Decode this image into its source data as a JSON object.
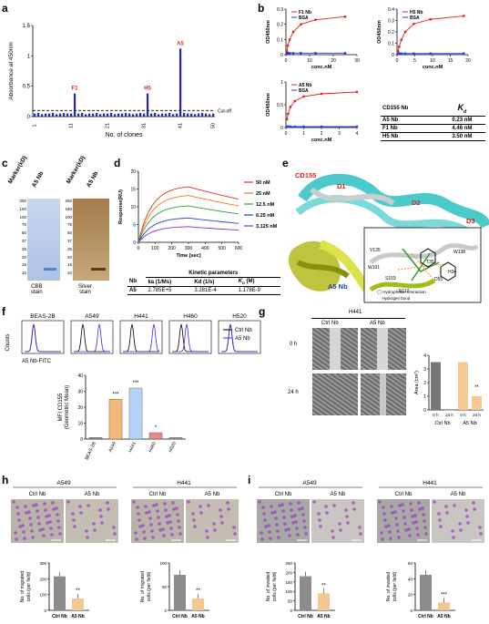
{
  "panel_letters": {
    "a": "a",
    "b": "b",
    "c": "c",
    "d": "d",
    "e": "e",
    "f": "f",
    "g": "g",
    "h": "h",
    "i": "i"
  },
  "panel_a": {
    "ylabel": "Absorbance at 450nm",
    "xlabel": "No. of clones",
    "cutoff_label": "Cut-off",
    "highlights": [
      {
        "clone": 12,
        "label": "F1"
      },
      {
        "clone": 32,
        "label": "H5"
      },
      {
        "clone": 41,
        "label": "A5"
      }
    ]
  },
  "panel_b": {
    "legend_f1": "F1 Nb",
    "legend_h5": "H5 Nb",
    "legend_a5": "A5 Nb",
    "legend_bsa": "BSA",
    "ylabel": "OD450nm",
    "xlabel": "conc.nM",
    "kd_header_left": "CD155 Nb",
    "kd_header_right": "K",
    "kd_sub": "d",
    "kd_rows": [
      {
        "nb": "A5 Nb",
        "kd": "0.23 nM"
      },
      {
        "nb": "F1 Nb",
        "kd": "4.46 nM"
      },
      {
        "nb": "H5 Nb",
        "kd": "3.50 nM"
      }
    ]
  },
  "panel_c": {
    "lane1": "Marker(kD)",
    "lane2": "A5 Nb",
    "cbb": "CBB\nstain",
    "silver": "Silver\nstain",
    "markers_left": [
      "250",
      "150",
      "100",
      "75",
      "50",
      "37",
      "25",
      "20",
      "15",
      "10"
    ],
    "markers_right": [
      "250",
      "150",
      "100",
      "75",
      "50",
      "37",
      "25",
      "20",
      "15",
      "10"
    ]
  },
  "panel_d": {
    "ylabel": "Response(RU)",
    "xlabel": "Time [sec]",
    "legend": [
      "50 nM",
      "25 nM",
      "12.5 nM",
      "6.25 nM",
      "3.125 nM"
    ],
    "table_title": "Kinetic parameters",
    "col_nb": "Nb",
    "col_ka": "ka (1/Ms)",
    "col_kd": "Kd (1/s)",
    "col_KD": "K",
    "col_KD_sub": "D",
    "col_KD_unit": " (M)",
    "row": {
      "nb": "A5",
      "ka": "2.785E+5",
      "kd": "3.281E-4",
      "KD": "1.178E-9"
    }
  },
  "panel_e": {
    "cd155": "CD155",
    "d1": "D1",
    "d2": "D2",
    "d3": "D3",
    "nb": "A5 Nb",
    "residues": [
      "V135",
      "W101",
      "S103",
      "T35",
      "D55",
      "H34",
      "W138",
      "E117"
    ],
    "legend_hydro": "Hydrophobic interaction",
    "legend_hbond": "Hydrogen bond"
  },
  "panel_f": {
    "cells": [
      "BEAS-2B",
      "A549",
      "H441",
      "H460",
      "H520"
    ],
    "ylabel_flow": "Counts",
    "xlabel_flow": "A5 Nb-FITC",
    "legend_ctrl": "Ctrl Nb",
    "legend_a5": "A5 Nb",
    "bar_ylabel": "MFI CD155\n(Geometric Mean)",
    "bar_values": [
      1,
      25,
      32,
      4,
      1
    ],
    "bar_sig": [
      "",
      "***",
      "***",
      "*",
      ""
    ]
  },
  "panel_g": {
    "title": "H441",
    "ctrl": "Ctrl Nb",
    "a5": "A5 Nb",
    "t0": "0 h",
    "t24": "24 h",
    "ylabel": "Area (cm²)",
    "groups": [
      {
        "name": "Ctrl Nb",
        "bars": [
          {
            "label": "0 h",
            "value": 3.5
          },
          {
            "label": "24 h",
            "value": 0
          }
        ]
      },
      {
        "name": "A5 Nb",
        "bars": [
          {
            "label": "0 h",
            "value": 3.5
          },
          {
            "label": "24 h",
            "value": 1.0
          }
        ]
      }
    ],
    "sig": "**"
  },
  "panel_h": {
    "left_title": "A549",
    "right_title": "H441",
    "ctrl": "Ctrl Nb",
    "a5": "A5 Nb",
    "ylabel": "No. of migrated\ncells (per field)",
    "left_values": [
      215,
      75
    ],
    "right_values": [
      75,
      25
    ],
    "sig": "**"
  },
  "panel_i": {
    "left_title": "A549",
    "right_title": "H441",
    "ctrl": "Ctrl Nb",
    "a5": "A5 Nb",
    "ylabel": "No. of invaded\ncells (per field)",
    "left_values": [
      180,
      90
    ],
    "right_values": [
      45,
      10
    ],
    "sig_left": "**",
    "sig_right": "***"
  },
  "chart_data": [
    {
      "type": "bar",
      "title": "",
      "xlabel": "No. of clones",
      "ylabel": "Absorbance at 450nm",
      "ylim": [
        0,
        1.5
      ],
      "x": [
        1,
        2,
        3,
        4,
        5,
        6,
        7,
        8,
        9,
        10,
        11,
        12,
        13,
        14,
        15,
        16,
        17,
        18,
        19,
        20,
        21,
        22,
        23,
        24,
        25,
        26,
        27,
        28,
        29,
        30,
        31,
        32,
        33,
        34,
        35,
        36,
        37,
        38,
        39,
        40,
        41,
        42,
        43,
        44,
        45,
        46,
        47,
        48,
        49,
        50
      ],
      "values": [
        0.05,
        0.06,
        0.04,
        0.05,
        0.05,
        0.06,
        0.04,
        0.05,
        0.06,
        0.05,
        0.05,
        0.38,
        0.05,
        0.06,
        0.04,
        0.05,
        0.05,
        0.06,
        0.04,
        0.05,
        0.05,
        0.06,
        0.04,
        0.05,
        0.05,
        0.06,
        0.05,
        0.04,
        0.05,
        0.06,
        0.05,
        0.38,
        0.05,
        0.06,
        0.04,
        0.05,
        0.05,
        0.06,
        0.04,
        0.05,
        1.12,
        0.06,
        0.05,
        0.05,
        0.04,
        0.05,
        0.06,
        0.05,
        0.04,
        0.05
      ],
      "cutoff": 0.1,
      "xticks": [
        1,
        11,
        21,
        31,
        41,
        50
      ],
      "yticks": [
        0.0,
        0.5,
        1.0,
        1.5
      ]
    },
    {
      "type": "line",
      "legend": [
        "F1 Nb",
        "BSA"
      ],
      "xlabel": "conc.nM",
      "ylabel": "OD450nm",
      "xlim": [
        0,
        30
      ],
      "ylim": [
        0,
        0.3
      ],
      "xticks": [
        0,
        10,
        20,
        30
      ],
      "yticks": [
        0.0,
        0.1,
        0.2,
        0.3
      ],
      "series": [
        {
          "name": "F1 Nb",
          "x": [
            0.4,
            0.8,
            1.6,
            3.1,
            6.3,
            12.5,
            25
          ],
          "values": [
            0.02,
            0.06,
            0.1,
            0.15,
            0.2,
            0.23,
            0.25
          ]
        },
        {
          "name": "BSA",
          "x": [
            0.4,
            0.8,
            1.6,
            3.1,
            6.3,
            12.5,
            25
          ],
          "values": [
            0.01,
            0.01,
            0.01,
            0.01,
            0.01,
            0.01,
            0.01
          ]
        }
      ]
    },
    {
      "type": "line",
      "legend": [
        "H5 Nb",
        "BSA"
      ],
      "xlabel": "conc.nM",
      "ylabel": "OD450nm",
      "xlim": [
        0,
        20
      ],
      "ylim": [
        0,
        0.4
      ],
      "xticks": [
        0,
        5,
        10,
        15,
        20
      ],
      "yticks": [
        0.0,
        0.1,
        0.2,
        0.3,
        0.4
      ],
      "series": [
        {
          "name": "H5 Nb",
          "x": [
            0.3,
            0.6,
            1.2,
            2.3,
            4.7,
            9.4,
            18.8
          ],
          "values": [
            0.03,
            0.07,
            0.13,
            0.2,
            0.27,
            0.31,
            0.34
          ]
        },
        {
          "name": "BSA",
          "x": [
            0.3,
            0.6,
            1.2,
            2.3,
            4.7,
            9.4,
            18.8
          ],
          "values": [
            0.01,
            0.01,
            0.01,
            0.01,
            0.01,
            0.01,
            0.01
          ]
        }
      ]
    },
    {
      "type": "line",
      "legend": [
        "A5 Nb",
        "BSA"
      ],
      "xlabel": "conc.nM",
      "ylabel": "OD450nm",
      "xlim": [
        0,
        4
      ],
      "ylim": [
        0,
        1.0
      ],
      "xticks": [
        0,
        1,
        2,
        3,
        4
      ],
      "yticks": [
        0.0,
        0.5,
        1.0
      ],
      "series": [
        {
          "name": "A5 Nb",
          "x": [
            0.06,
            0.12,
            0.25,
            0.5,
            1,
            2,
            4
          ],
          "values": [
            0.18,
            0.3,
            0.45,
            0.58,
            0.68,
            0.74,
            0.78
          ]
        },
        {
          "name": "BSA",
          "x": [
            0.06,
            0.12,
            0.25,
            0.5,
            1,
            2,
            4
          ],
          "values": [
            0.02,
            0.02,
            0.02,
            0.02,
            0.02,
            0.02,
            0.02
          ]
        }
      ]
    },
    {
      "type": "line",
      "xlabel": "Time [sec]",
      "ylabel": "Response(RU)",
      "xlim": [
        0,
        600
      ],
      "ylim": [
        0,
        20
      ],
      "xticks": [
        0,
        100,
        200,
        300,
        400,
        500,
        600
      ],
      "yticks": [
        0,
        5,
        10,
        15,
        20
      ],
      "series": [
        {
          "name": "50 nM",
          "peak": 16
        },
        {
          "name": "25 nM",
          "peak": 13.5
        },
        {
          "name": "12.5 nM",
          "peak": 10.5
        },
        {
          "name": "6.25 nM",
          "peak": 7
        },
        {
          "name": "3.125 nM",
          "peak": 4.5
        }
      ]
    },
    {
      "type": "bar",
      "ylabel": "MFI CD155 (Geometric Mean)",
      "ylim": [
        0,
        40
      ],
      "yticks": [
        0,
        10,
        20,
        30,
        40
      ],
      "categories": [
        "BEAS-2B",
        "A549",
        "H441",
        "H460",
        "H520"
      ],
      "values": [
        1,
        25,
        32,
        4,
        1
      ]
    },
    {
      "type": "bar",
      "ylabel": "Area (cm²)",
      "ylim": [
        0,
        4
      ],
      "yticks": [
        0,
        1,
        2,
        3,
        4
      ],
      "categories": [
        "0 h",
        "24 h",
        "0 h",
        "24 h"
      ],
      "values": [
        3.5,
        0,
        3.5,
        1.0
      ]
    },
    {
      "type": "bar",
      "ylabel": "No. of migrated cells (per field)",
      "ylim": [
        0,
        300
      ],
      "yticks": [
        0,
        100,
        200,
        300
      ],
      "categories": [
        "Ctrl Nb",
        "A5 Nb"
      ],
      "values": [
        215,
        75
      ]
    },
    {
      "type": "bar",
      "ylabel": "No. of migrated cells (per field)",
      "ylim": [
        0,
        100
      ],
      "yticks": [
        0,
        50,
        100
      ],
      "categories": [
        "Ctrl Nb",
        "A5 Nb"
      ],
      "values": [
        75,
        25
      ]
    },
    {
      "type": "bar",
      "ylabel": "No. of invaded cells (per field)",
      "ylim": [
        0,
        250
      ],
      "yticks": [
        0,
        50,
        100,
        150,
        200,
        250
      ],
      "categories": [
        "Ctrl Nb",
        "A5 Nb"
      ],
      "values": [
        180,
        90
      ]
    },
    {
      "type": "bar",
      "ylabel": "No. of invaded cells (per field)",
      "ylim": [
        0,
        60
      ],
      "yticks": [
        0,
        20,
        40,
        60
      ],
      "categories": [
        "Ctrl Nb",
        "A5 Nb"
      ],
      "values": [
        45,
        10
      ]
    }
  ]
}
